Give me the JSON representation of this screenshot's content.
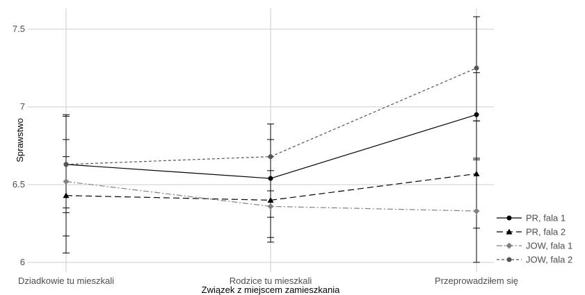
{
  "chart_data": {
    "type": "line",
    "xlabel": "Związek z miejscem zamieszkania",
    "ylabel": "Sprawstwo",
    "categories": [
      "Dziadkowie tu mieszkali",
      "Rodzice tu mieszkali",
      "Przeprowadziłem się"
    ],
    "ylim": [
      5.95,
      7.62
    ],
    "yticks": [
      6,
      6.5,
      7,
      7.5
    ],
    "ytick_labels": [
      "6",
      "6.5",
      "7",
      "7.5"
    ],
    "grid": true,
    "legend_position": "right",
    "series": [
      {
        "name": "PR, fala 1",
        "values": [
          6.63,
          6.54,
          6.95
        ],
        "error_low": [
          6.32,
          6.29,
          6.67
        ],
        "error_high": [
          6.94,
          6.79,
          7.22
        ],
        "marker": "circle",
        "dash": "solid",
        "color": "#000000"
      },
      {
        "name": "PR, fala 2",
        "values": [
          6.43,
          6.4,
          6.57
        ],
        "error_low": [
          6.17,
          6.13,
          6.22
        ],
        "error_high": [
          6.68,
          6.68,
          6.91
        ],
        "marker": "triangle",
        "dash": "longdash",
        "color": "#000000"
      },
      {
        "name": "JOW, fala 1",
        "values": [
          6.52,
          6.36,
          6.33
        ],
        "error_low": [
          6.06,
          6.16,
          6.0
        ],
        "error_high": [
          6.79,
          6.59,
          6.66
        ],
        "marker": "diamond",
        "dash": "dashdot",
        "color": "#808080"
      },
      {
        "name": "JOW, fala 2",
        "values": [
          6.63,
          6.68,
          7.25
        ],
        "error_low": [
          6.35,
          6.46,
          6.91
        ],
        "error_high": [
          6.95,
          6.89,
          7.58
        ],
        "marker": "circle",
        "dash": "dashed",
        "color": "#555555"
      }
    ]
  }
}
